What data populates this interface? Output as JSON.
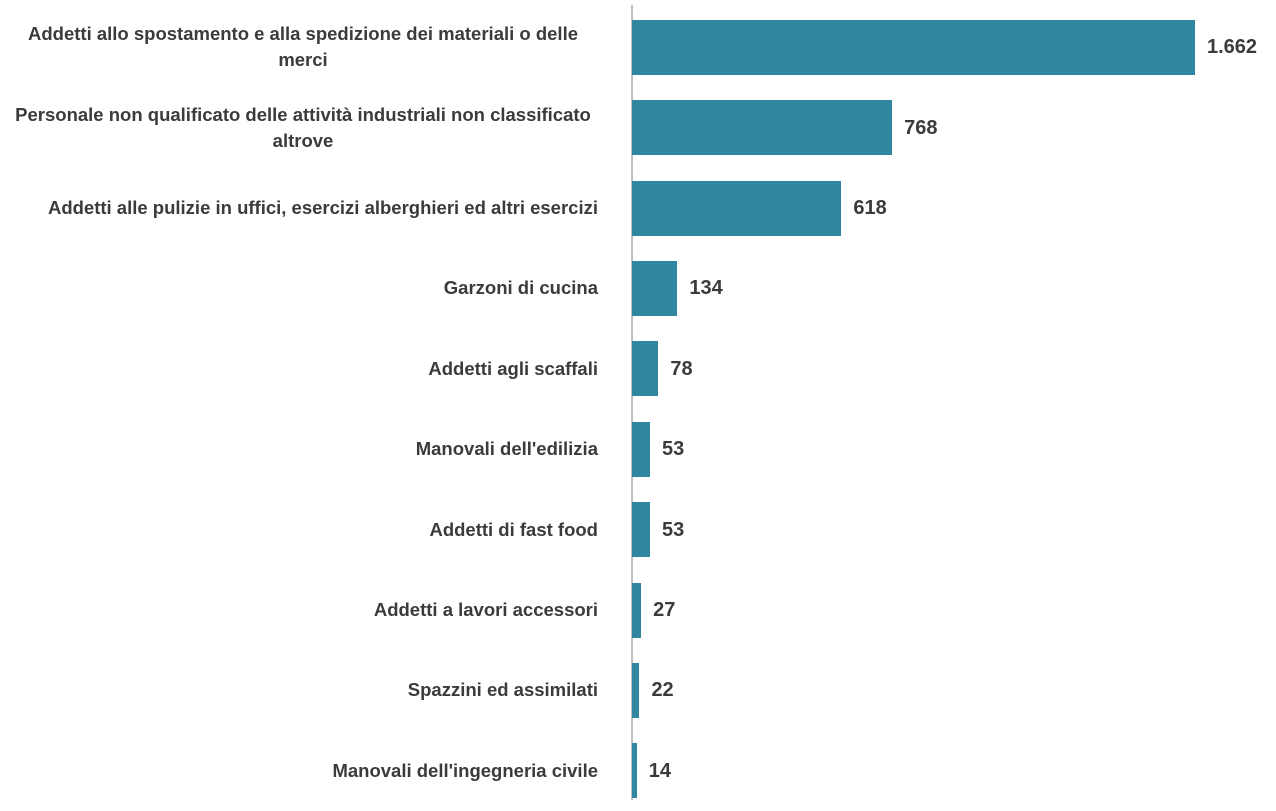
{
  "chart_data": {
    "type": "hbar",
    "categories": [
      "Addetti allo spostamento e alla spedizione dei materiali o delle merci",
      "Personale non qualificato delle attività industriali non classificato altrove",
      "Addetti alle pulizie in uffici, esercizi alberghieri ed altri esercizi",
      "Garzoni di cucina",
      "Addetti agli scaffali",
      "Manovali dell'edilizia",
      "Addetti di fast food",
      "Addetti a lavori accessori",
      "Spazzini ed assimilati",
      "Manovali dell'ingegneria civile"
    ],
    "values": [
      1662,
      768,
      618,
      134,
      78,
      53,
      53,
      27,
      22,
      14
    ],
    "value_labels": [
      "1.662",
      "768",
      "618",
      "134",
      "78",
      "53",
      "53",
      "27",
      "22",
      "14"
    ],
    "color": "#31879f"
  }
}
